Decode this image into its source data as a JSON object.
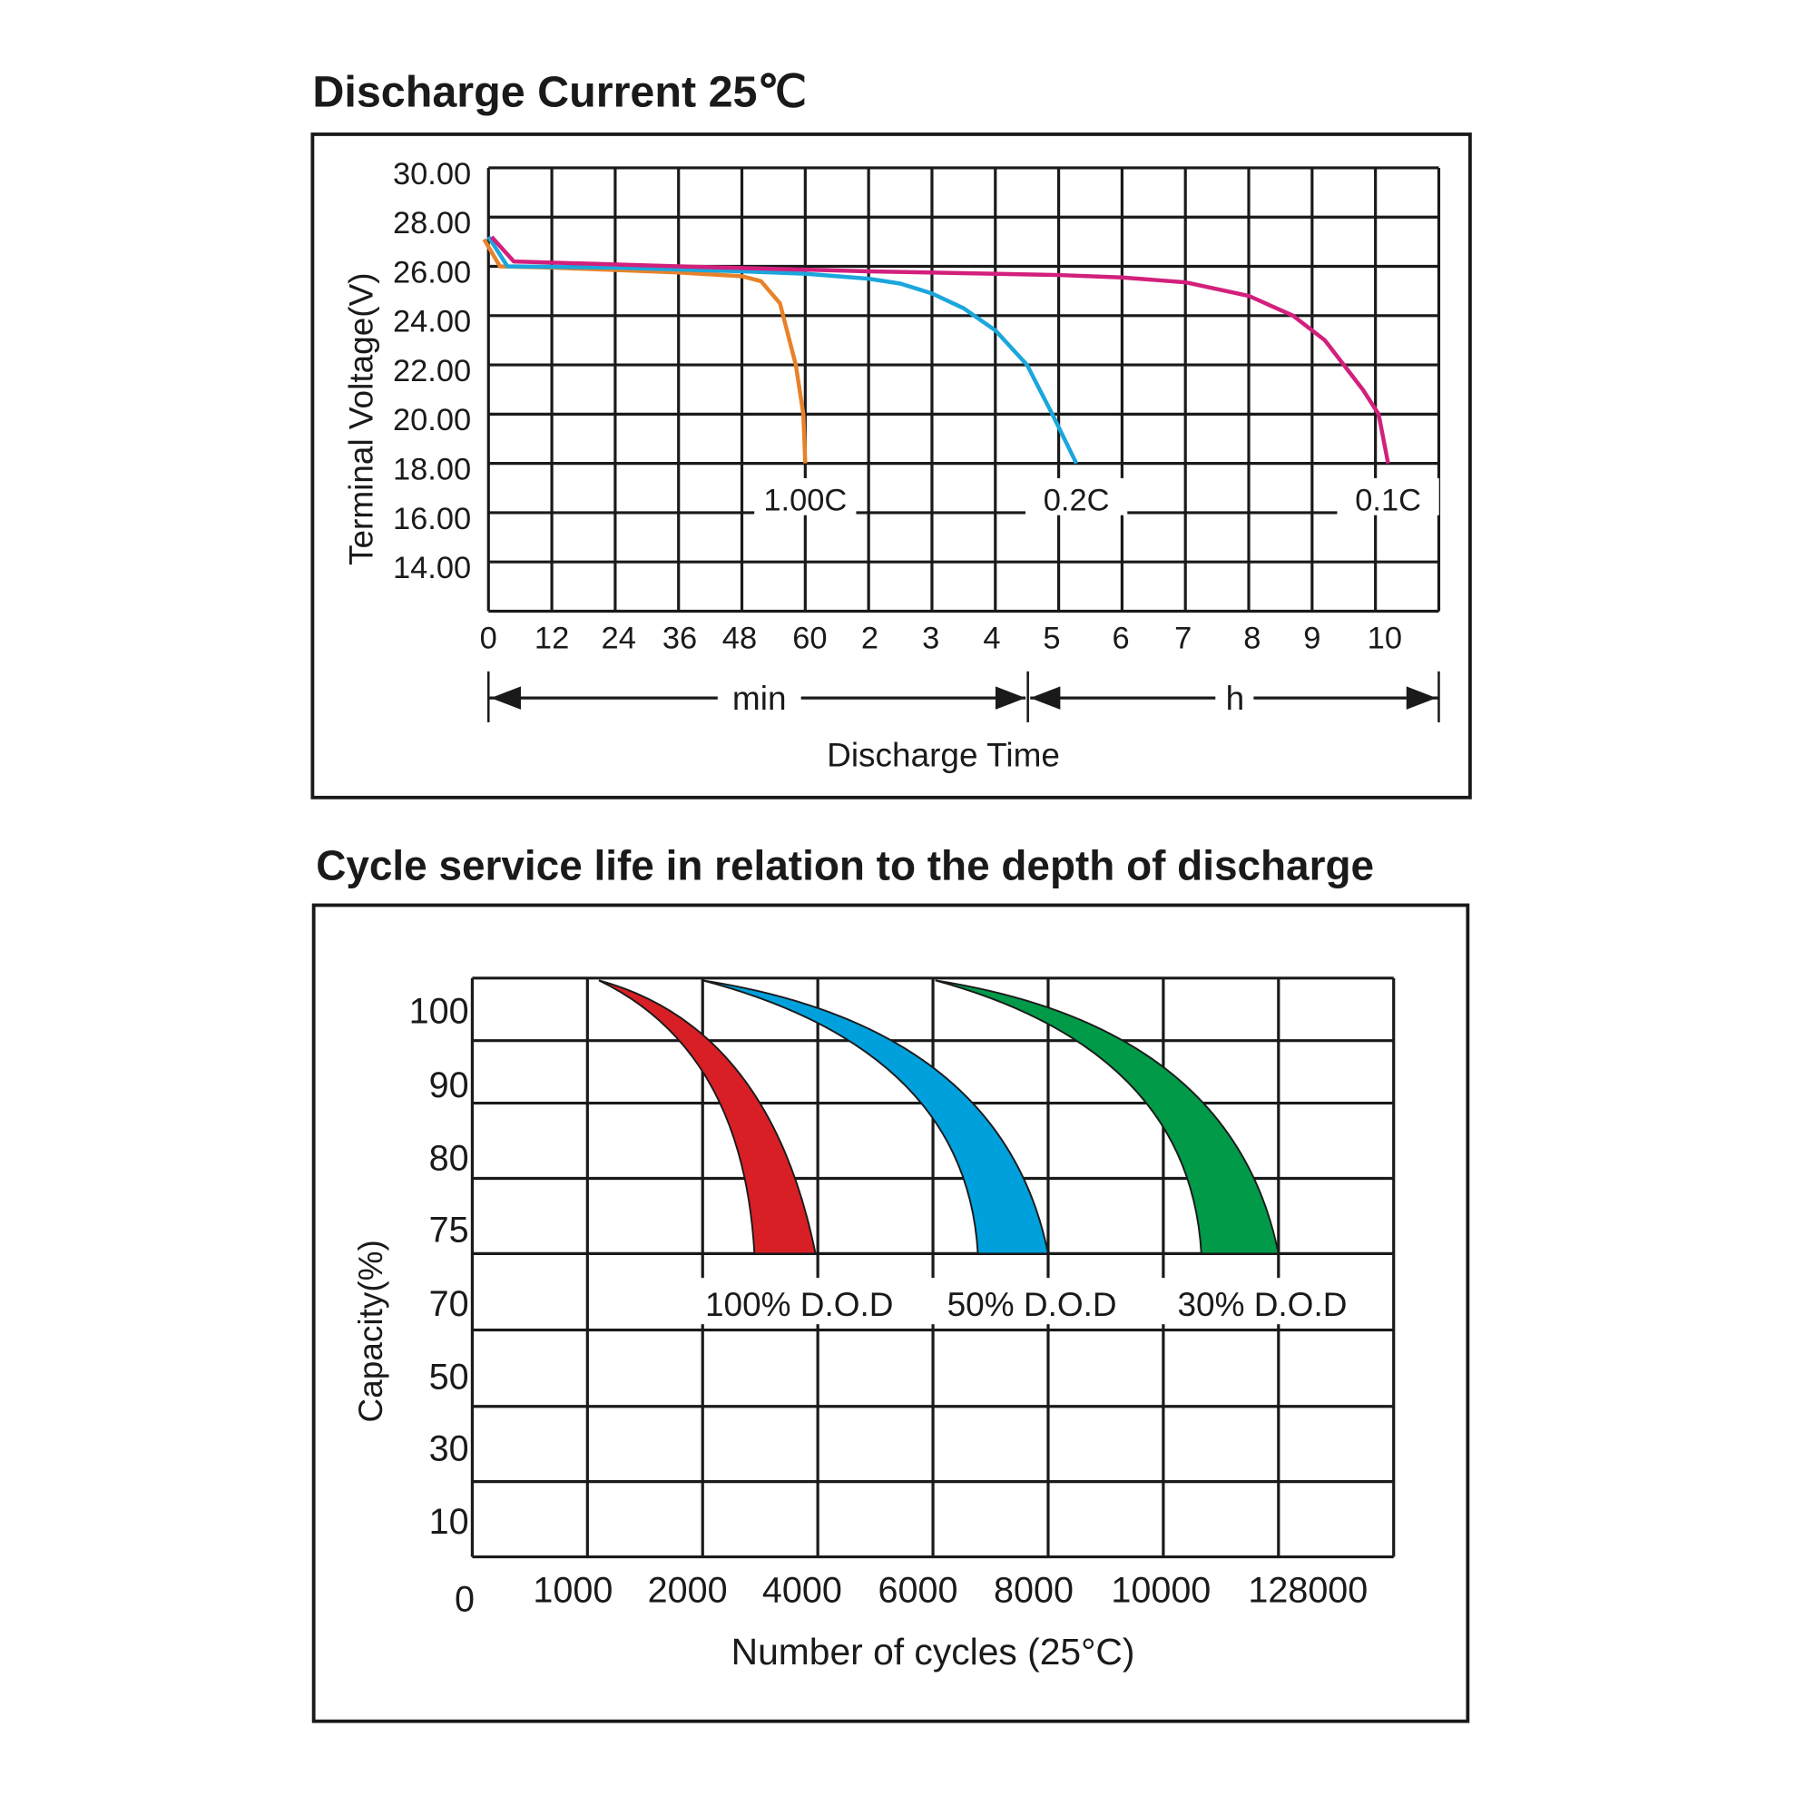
{
  "chart_data": [
    {
      "type": "line",
      "title": "Discharge Current 25℃",
      "xlabel": "Discharge Time",
      "ylabel": "Terminal Voltage(V)",
      "ylim": [
        12,
        30
      ],
      "y_ticks": [
        "30.00",
        "28.00",
        "26.00",
        "24.00",
        "22.00",
        "20.00",
        "18.00",
        "16.00",
        "14.00"
      ],
      "x_ticks": [
        "0",
        "12",
        "24",
        "36",
        "48",
        "60",
        "2",
        "3",
        "4",
        "5",
        "6",
        "7",
        "8",
        "9",
        "10"
      ],
      "x_unit_note": "x values in axis tick-index units (0-5 = 0-60 min, then hours)",
      "x_segments": [
        {
          "label": "min"
        },
        {
          "label": "h"
        }
      ],
      "grid": true,
      "series": [
        {
          "name": "1.00C",
          "color": "#e8822a",
          "x": [
            -0.07,
            0.18,
            1,
            2,
            3,
            4,
            4.3,
            4.6,
            4.85,
            4.97,
            5.0
          ],
          "y": [
            27.1,
            26.0,
            25.95,
            25.85,
            25.75,
            25.6,
            25.4,
            24.5,
            22,
            20,
            18
          ]
        },
        {
          "name": "0.2C",
          "color": "#1ba6dc",
          "x": [
            0,
            0.3,
            2,
            4,
            5,
            6,
            6.5,
            7,
            7.5,
            8,
            8.5,
            8.9,
            9.28
          ],
          "y": [
            27.2,
            26.0,
            25.95,
            25.8,
            25.7,
            25.5,
            25.3,
            24.9,
            24.3,
            23.4,
            22,
            20,
            18
          ]
        },
        {
          "name": "0.1C",
          "color": "#d2207c",
          "x": [
            0.05,
            0.4,
            3,
            6,
            9,
            10,
            11,
            12,
            12.7,
            13.2,
            13.8,
            14.05,
            14.2
          ],
          "y": [
            27.2,
            26.2,
            26.0,
            25.8,
            25.65,
            25.55,
            25.35,
            24.8,
            24,
            23,
            21,
            20,
            18
          ]
        }
      ]
    },
    {
      "type": "area",
      "title": "Cycle service life in relation to the depth of discharge",
      "xlabel": "Number of cycles (25°C)",
      "ylabel": "Capacity(%)",
      "y_ticks": [
        "100",
        "90",
        "80",
        "75",
        "70",
        "50",
        "30",
        "10",
        "0"
      ],
      "x_ticks": [
        "1000",
        "2000",
        "4000",
        "6000",
        "8000",
        "10000",
        "128000"
      ],
      "grid": true,
      "series": [
        {
          "name": "100% D.O.D",
          "color": "#d91f26",
          "tip": 1.1,
          "end_left": 2.45,
          "end_right": 2.98,
          "capacity_top": 100,
          "capacity_bottom": 75
        },
        {
          "name": "50% D.O.D",
          "color": "#00a0dc",
          "tip": 2.0,
          "end_left": 4.39,
          "end_right": 5.0,
          "capacity_top": 100,
          "capacity_bottom": 75
        },
        {
          "name": "30% D.O.D",
          "color": "#009a49",
          "tip": 4.02,
          "end_left": 6.33,
          "end_right": 7.0,
          "capacity_top": 100,
          "capacity_bottom": 75
        }
      ]
    }
  ]
}
